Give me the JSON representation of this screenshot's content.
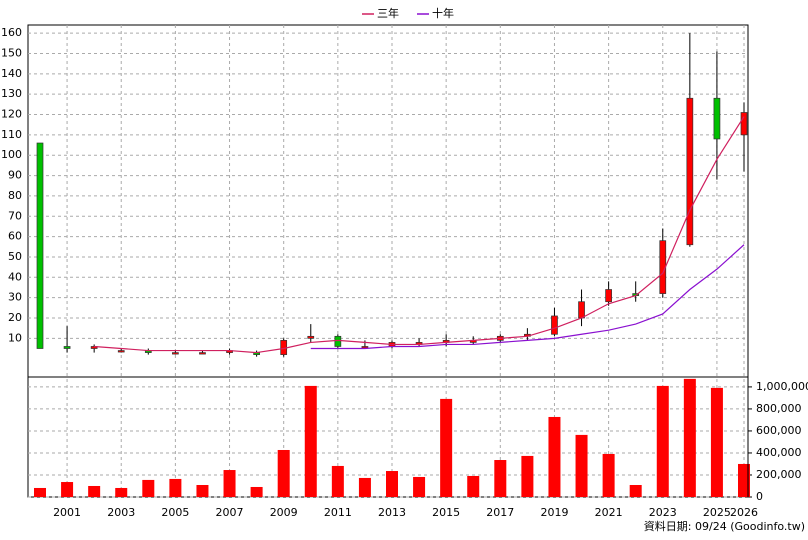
{
  "chart_data": [
    {
      "type": "candlestick",
      "note": "資料日期: 09/24 (Goodinfo.tw)",
      "categories": [
        null,
        "2001",
        null,
        "2003",
        null,
        "2005",
        null,
        "2007",
        null,
        "2009",
        null,
        "2011",
        null,
        "2013",
        null,
        "2015",
        null,
        "2017",
        null,
        "2019",
        null,
        "2021",
        null,
        "2023",
        null,
        "2025",
        "2026"
      ],
      "open": [
        106,
        6,
        5,
        4,
        4,
        3,
        3,
        3,
        3,
        2,
        10,
        11,
        6,
        6,
        7,
        8,
        8,
        9,
        11,
        12,
        20,
        28,
        32,
        32,
        56,
        128,
        110
      ],
      "high": [
        106,
        16,
        7,
        5,
        5,
        4,
        4,
        5,
        4,
        10,
        17,
        12,
        9,
        9,
        10,
        12,
        11,
        12,
        15,
        25,
        34,
        38,
        38,
        64,
        160,
        151,
        126
      ],
      "low": [
        5,
        3,
        3,
        3,
        2,
        2,
        3,
        2,
        1,
        1,
        8,
        5,
        5,
        5,
        6,
        6,
        7,
        8,
        9,
        11,
        16,
        26,
        28,
        30,
        55,
        88,
        92
      ],
      "close": [
        5,
        5,
        6,
        4,
        3,
        3,
        3,
        4,
        2,
        9,
        11,
        6,
        6,
        8,
        8,
        9,
        9,
        11,
        12,
        21,
        28,
        34,
        31,
        58,
        128,
        108,
        121
      ],
      "up_color": "#ff0000",
      "down_color": "#00c000",
      "series": [
        {
          "name": "三年",
          "color": "#d0205f",
          "values": [
            null,
            null,
            6,
            5,
            4,
            4,
            4,
            4,
            3,
            5,
            8,
            9,
            8,
            7,
            7,
            8,
            9,
            10,
            11,
            15,
            20,
            27,
            31,
            42,
            73,
            98,
            119
          ]
        },
        {
          "name": "十年",
          "color": "#8a10d0",
          "values": [
            null,
            null,
            null,
            null,
            null,
            null,
            null,
            null,
            null,
            null,
            5,
            5,
            5,
            6,
            6,
            7,
            7,
            8,
            9,
            10,
            12,
            14,
            17,
            22,
            34,
            44,
            56
          ]
        }
      ],
      "ylim": [
        -9,
        164
      ],
      "yticks": [
        10,
        20,
        30,
        40,
        50,
        60,
        70,
        80,
        90,
        100,
        110,
        120,
        130,
        140,
        150,
        160
      ],
      "grid": true,
      "legend": "top"
    },
    {
      "type": "bar",
      "color": "#ff0000",
      "values": [
        82000,
        136000,
        100000,
        82000,
        155000,
        164000,
        109000,
        245000,
        91000,
        427000,
        1009000,
        282000,
        173000,
        236000,
        182000,
        891000,
        191000,
        336000,
        373000,
        727000,
        564000,
        391000,
        109000,
        1009000,
        1073000,
        991000,
        300000
      ],
      "ylim": [
        0,
        1090000
      ],
      "yticks": [
        0,
        {
          "value": 200000,
          "label": "200,000"
        },
        {
          "value": 400000,
          "label": "400,000"
        },
        {
          "value": 600000,
          "label": "600,000"
        },
        {
          "value": 800000,
          "label": "800,000"
        },
        {
          "value": 1000000,
          "label": "1,000,000"
        }
      ],
      "grid": true
    }
  ]
}
